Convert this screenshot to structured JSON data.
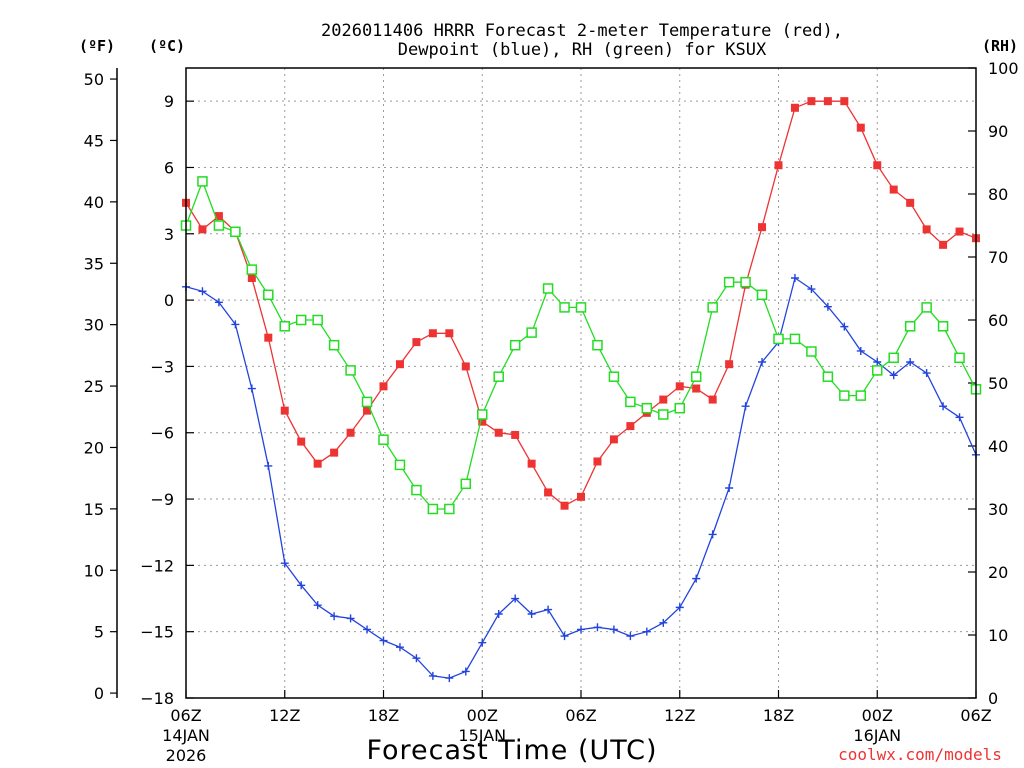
{
  "chart_data": {
    "type": "line",
    "title_line1": "2026011406 HRRR Forecast 2-meter Temperature (red),",
    "title_line2": "Dewpoint (blue), RH (green) for KSUX",
    "unit_f": "(ºF)",
    "unit_c": "(ºC)",
    "unit_rh": "(RH)",
    "xlabel": "Forecast Time (UTC)",
    "watermark": "coolwx.com/models",
    "x_hours": [
      0,
      1,
      2,
      3,
      4,
      5,
      6,
      7,
      8,
      9,
      10,
      11,
      12,
      13,
      14,
      15,
      16,
      17,
      18,
      19,
      20,
      21,
      22,
      23,
      24,
      25,
      26,
      27,
      28,
      29,
      30,
      31,
      32,
      33,
      34,
      35,
      36,
      37,
      38,
      39,
      40,
      41,
      42,
      43,
      44,
      45,
      46,
      47,
      48
    ],
    "xlim": [
      0,
      48
    ],
    "c_lim": [
      -18,
      10.5
    ],
    "f_lim": [
      -0.4,
      50.9
    ],
    "rh_lim": [
      0,
      100
    ],
    "x_ticks": [
      {
        "hour": 0,
        "label": "06Z",
        "sub1": "14JAN",
        "sub2": "2026"
      },
      {
        "hour": 6,
        "label": "12Z",
        "sub1": "",
        "sub2": ""
      },
      {
        "hour": 12,
        "label": "18Z",
        "sub1": "",
        "sub2": ""
      },
      {
        "hour": 18,
        "label": "00Z",
        "sub1": "15JAN",
        "sub2": ""
      },
      {
        "hour": 24,
        "label": "06Z",
        "sub1": "",
        "sub2": ""
      },
      {
        "hour": 30,
        "label": "12Z",
        "sub1": "",
        "sub2": ""
      },
      {
        "hour": 36,
        "label": "18Z",
        "sub1": "",
        "sub2": ""
      },
      {
        "hour": 42,
        "label": "00Z",
        "sub1": "16JAN",
        "sub2": ""
      },
      {
        "hour": 48,
        "label": "06Z",
        "sub1": "",
        "sub2": ""
      }
    ],
    "c_ticks": [
      9,
      6,
      3,
      0,
      -3,
      -6,
      -9,
      -12,
      -15,
      -18
    ],
    "c_tick_labels": [
      "9",
      "6",
      "3",
      "0",
      "−3",
      "−6",
      "−9",
      "−12",
      "−15",
      "−18"
    ],
    "f_ticks": [
      50,
      45,
      40,
      35,
      30,
      25,
      20,
      15,
      10,
      5,
      0
    ],
    "rh_ticks": [
      100,
      90,
      80,
      70,
      60,
      50,
      40,
      30,
      20,
      10,
      0
    ],
    "series": [
      {
        "name": "2-meter Temperature (°C)",
        "color": "#ee3333",
        "marker": "square-filled",
        "axis": "c",
        "values": [
          4.4,
          3.2,
          3.8,
          3.1,
          1.0,
          -1.7,
          -5.0,
          -6.4,
          -7.4,
          -6.9,
          -6.0,
          -5.0,
          -3.9,
          -2.9,
          -1.9,
          -1.5,
          -1.5,
          -3.0,
          -5.5,
          -6.0,
          -6.1,
          -7.4,
          -8.7,
          -9.3,
          -8.9,
          -7.3,
          -6.3,
          -5.7,
          -5.1,
          -4.5,
          -3.9,
          -4.0,
          -4.5,
          -2.9,
          0.7,
          3.3,
          6.1,
          8.7,
          9.0,
          9.0,
          9.0,
          7.8,
          6.1,
          5.0,
          4.4,
          3.2,
          2.5,
          3.1,
          2.8
        ]
      },
      {
        "name": "Dewpoint (°C)",
        "color": "#2244dd",
        "marker": "plus",
        "axis": "c",
        "values": [
          0.6,
          0.4,
          -0.1,
          -1.1,
          -4.0,
          -7.5,
          -11.9,
          -12.9,
          -13.8,
          -14.3,
          -14.4,
          -14.9,
          -15.4,
          -15.7,
          -16.2,
          -17.0,
          -17.1,
          -16.8,
          -15.5,
          -14.2,
          -13.5,
          -14.2,
          -14.0,
          -15.2,
          -14.9,
          -14.8,
          -14.9,
          -15.2,
          -15.0,
          -14.6,
          -13.9,
          -12.6,
          -10.6,
          -8.5,
          -4.8,
          -2.8,
          -1.9,
          1.0,
          0.5,
          -0.3,
          -1.2,
          -2.3,
          -2.8,
          -3.4,
          -2.8,
          -3.3,
          -4.8,
          -5.3,
          -7.0
        ]
      },
      {
        "name": "RH (%)",
        "color": "#22dd22",
        "marker": "square-open",
        "axis": "rh",
        "values": [
          75,
          82,
          75,
          74,
          68,
          64,
          59,
          60,
          60,
          56,
          52,
          47,
          41,
          37,
          33,
          30,
          30,
          34,
          45,
          51,
          56,
          58,
          65,
          62,
          62,
          56,
          51,
          47,
          46,
          45,
          46,
          51,
          62,
          66,
          66,
          64,
          57,
          57,
          55,
          51,
          48,
          48,
          52,
          54,
          59,
          62,
          59,
          54,
          49
        ]
      }
    ]
  }
}
